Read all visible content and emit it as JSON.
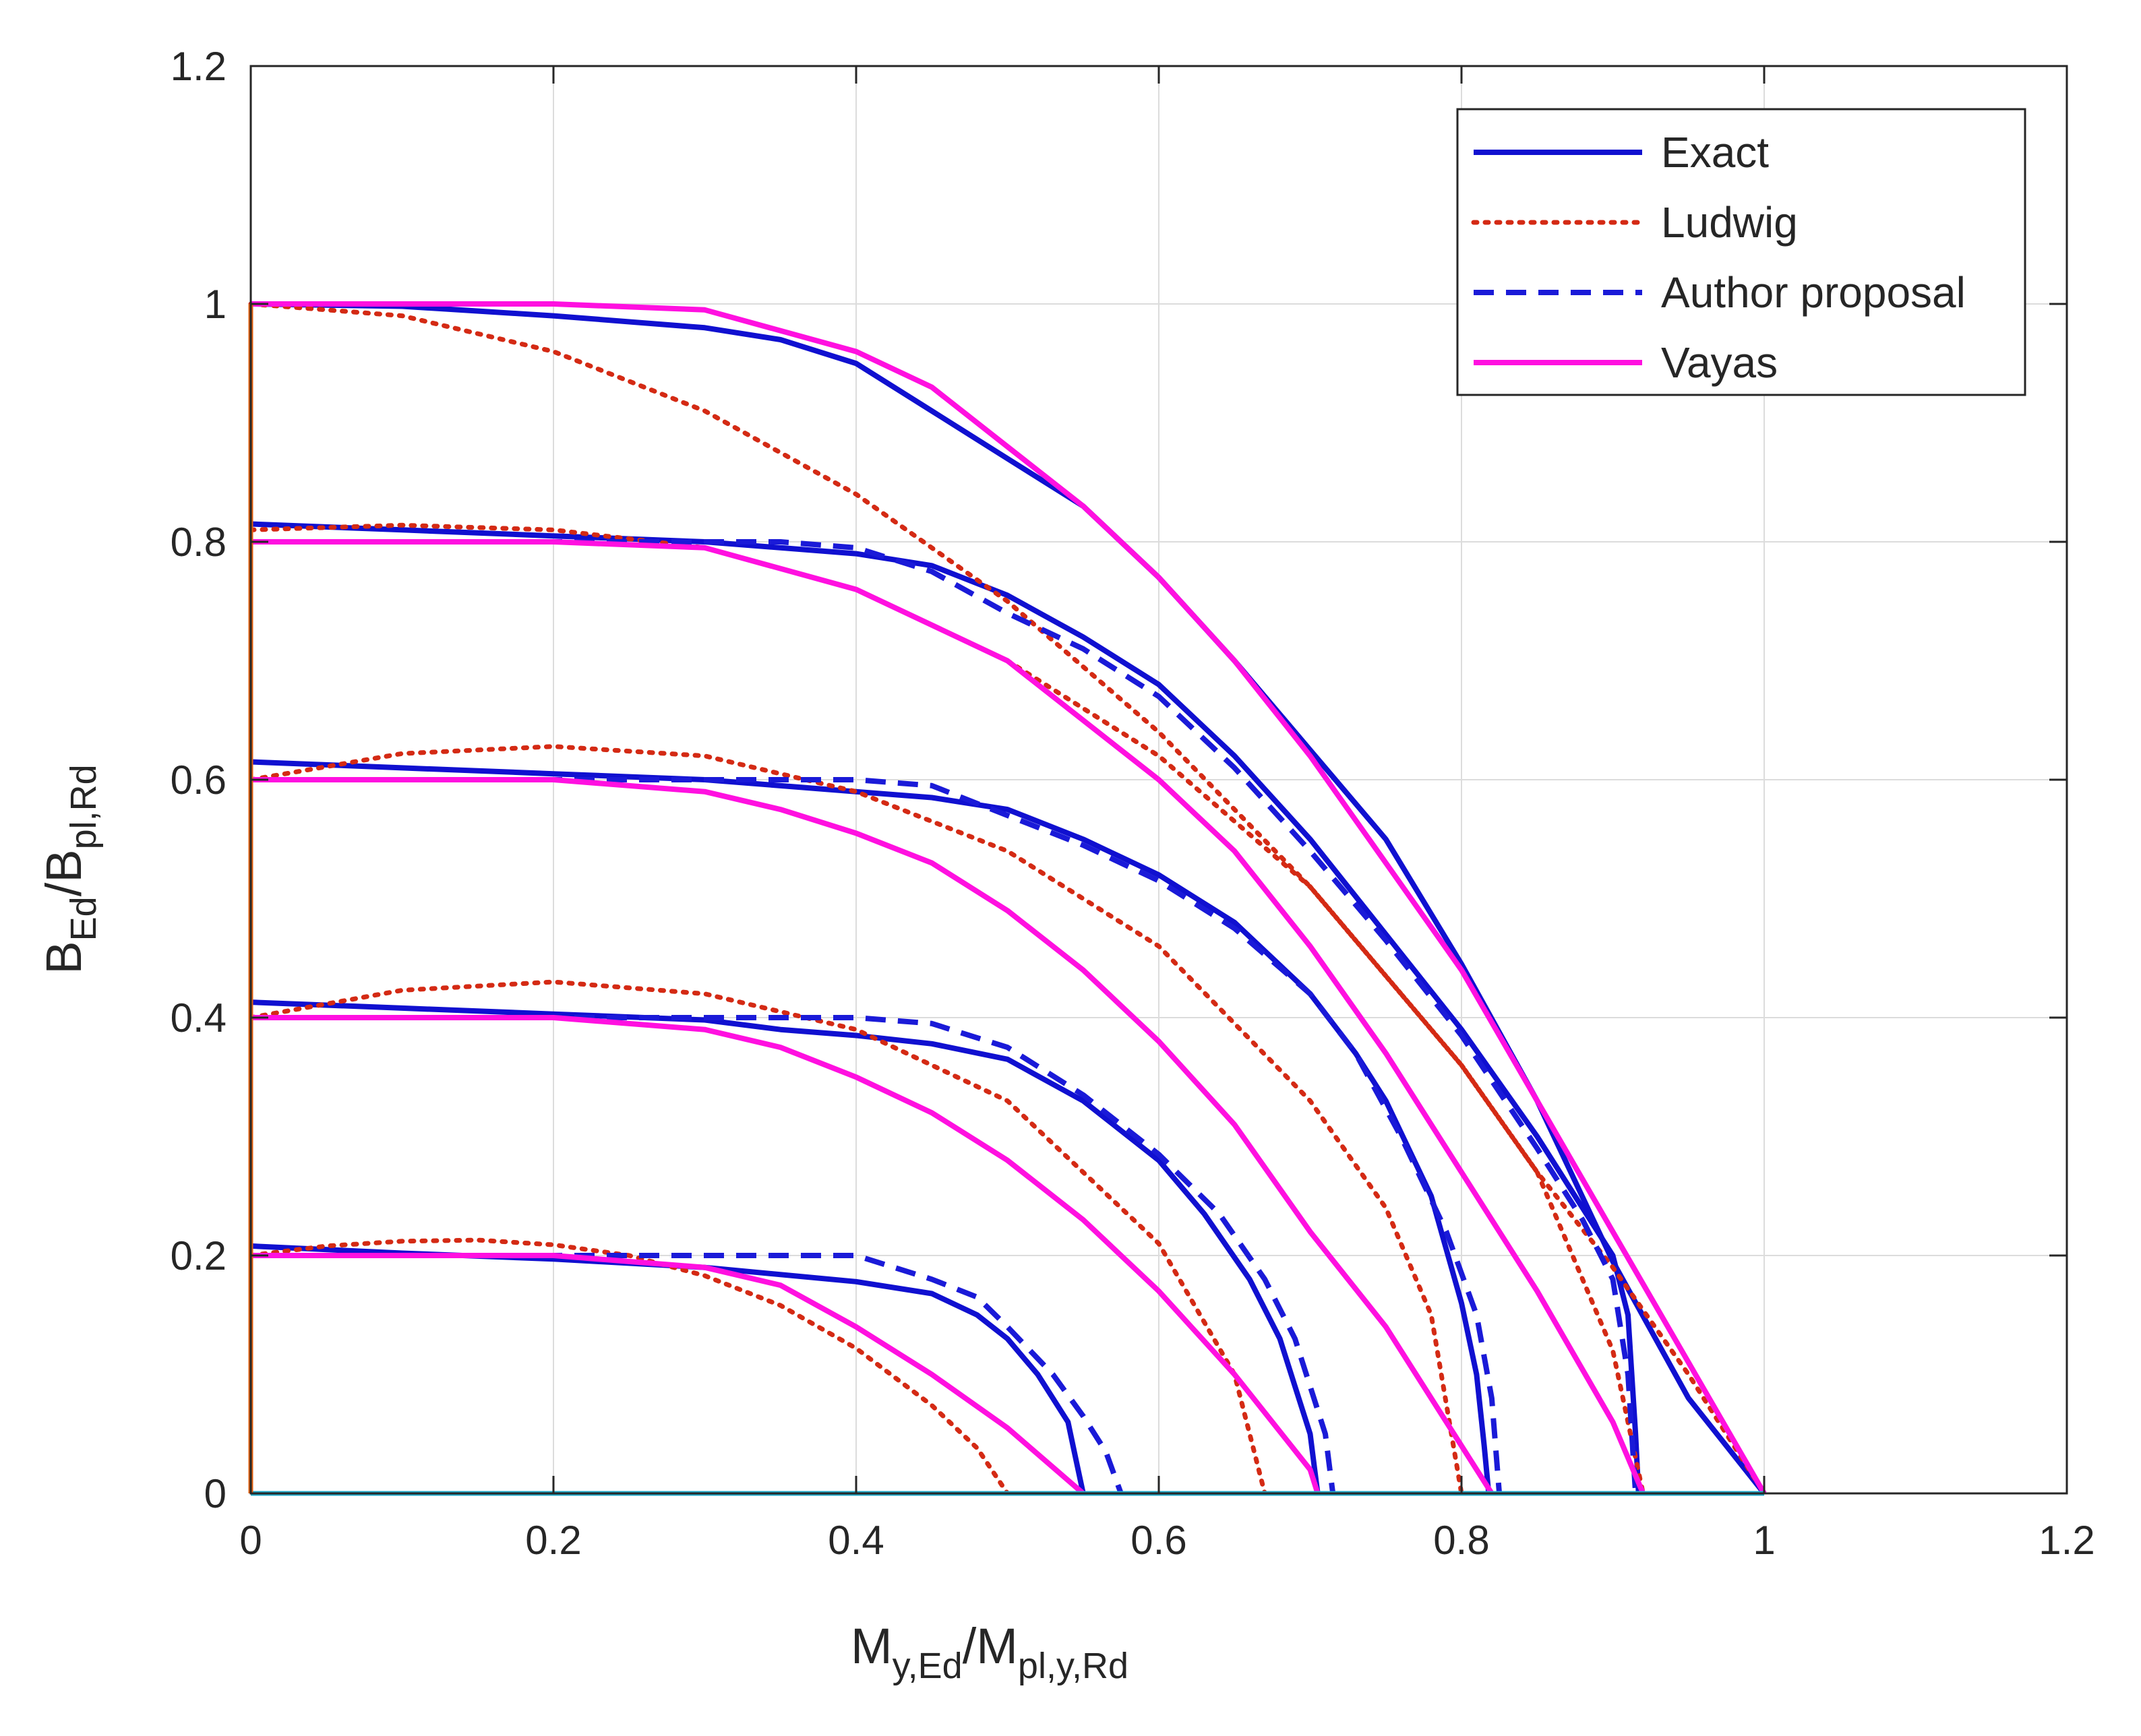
{
  "chart_data": {
    "type": "line",
    "title": "",
    "xlabel": {
      "main": "M",
      "sub1": "y,Ed",
      "sep": "/M",
      "sub2": "pl,y,Rd"
    },
    "ylabel": {
      "main": "B",
      "sub1": "Ed",
      "sep": "/B",
      "sub2": "pl,Rd"
    },
    "xlim": [
      0,
      1.2
    ],
    "ylim": [
      0,
      1.2
    ],
    "x_ticks": [
      "0",
      "0.2",
      "0.4",
      "0.6",
      "0.8",
      "1",
      "1.2"
    ],
    "y_ticks": [
      "0",
      "0.2",
      "0.4",
      "0.6",
      "0.8",
      "1",
      "1.2"
    ],
    "grid": true,
    "legend_position": "top-right",
    "legend": [
      {
        "key": "exact",
        "label": "Exact"
      },
      {
        "key": "ludwig",
        "label": "Ludwig"
      },
      {
        "key": "author",
        "label": "Author proposal"
      },
      {
        "key": "vayas",
        "label": "Vayas"
      }
    ],
    "styles": {
      "exact": {
        "color": "#1010d0",
        "dash": ""
      },
      "ludwig": {
        "color": "#d42a14",
        "dash": "dot"
      },
      "author": {
        "color": "#1a1ad8",
        "dash": "dash"
      },
      "vayas": {
        "color": "#ff10e0",
        "dash": ""
      }
    },
    "axis_line_colors": {
      "y_axis": "#e06010",
      "x_axis": "#20a8c8"
    },
    "series": [
      {
        "name": "Exact",
        "style": "exact",
        "x": [
          0,
          0.1,
          0.2,
          0.3,
          0.35,
          0.4,
          0.45,
          0.5,
          0.55,
          0.6,
          0.65,
          0.7,
          0.75,
          0.8,
          0.85,
          0.9,
          0.95,
          1.0
        ],
        "y": [
          1.0,
          0.998,
          0.99,
          0.98,
          0.97,
          0.95,
          0.91,
          0.87,
          0.83,
          0.77,
          0.7,
          0.625,
          0.55,
          0.445,
          0.33,
          0.195,
          0.08,
          0.0
        ]
      },
      {
        "name": "Exact",
        "style": "exact",
        "x": [
          0,
          0.1,
          0.2,
          0.3,
          0.4,
          0.45,
          0.5,
          0.55,
          0.6,
          0.65,
          0.7,
          0.75,
          0.8,
          0.85,
          0.88,
          0.9,
          0.91,
          0.915,
          0.917
        ],
        "y": [
          0.815,
          0.81,
          0.805,
          0.8,
          0.79,
          0.78,
          0.755,
          0.72,
          0.68,
          0.62,
          0.55,
          0.47,
          0.39,
          0.3,
          0.24,
          0.2,
          0.15,
          0.05,
          0.0
        ]
      },
      {
        "name": "Exact",
        "style": "exact",
        "x": [
          0,
          0.1,
          0.2,
          0.3,
          0.4,
          0.45,
          0.5,
          0.55,
          0.6,
          0.65,
          0.7,
          0.73,
          0.75,
          0.78,
          0.8,
          0.81,
          0.815,
          0.818
        ],
        "y": [
          0.615,
          0.61,
          0.605,
          0.6,
          0.59,
          0.585,
          0.575,
          0.55,
          0.52,
          0.48,
          0.42,
          0.37,
          0.33,
          0.25,
          0.16,
          0.1,
          0.04,
          0.0
        ]
      },
      {
        "name": "Exact",
        "style": "exact",
        "x": [
          0,
          0.1,
          0.2,
          0.3,
          0.35,
          0.4,
          0.45,
          0.5,
          0.55,
          0.6,
          0.63,
          0.66,
          0.68,
          0.69,
          0.7,
          0.703,
          0.705
        ],
        "y": [
          0.413,
          0.408,
          0.403,
          0.398,
          0.39,
          0.385,
          0.378,
          0.365,
          0.33,
          0.28,
          0.235,
          0.18,
          0.13,
          0.09,
          0.05,
          0.02,
          0.0
        ]
      },
      {
        "name": "Exact",
        "style": "exact",
        "x": [
          0,
          0.1,
          0.2,
          0.3,
          0.4,
          0.45,
          0.48,
          0.5,
          0.52,
          0.54,
          0.545,
          0.55
        ],
        "y": [
          0.208,
          0.202,
          0.197,
          0.19,
          0.178,
          0.168,
          0.15,
          0.13,
          0.1,
          0.06,
          0.03,
          0.0
        ]
      },
      {
        "name": "Ludwig",
        "style": "ludwig",
        "x": [
          0,
          0.1,
          0.2,
          0.3,
          0.4,
          0.5,
          0.6,
          0.7,
          0.8,
          0.85,
          0.9,
          0.95,
          1.0
        ],
        "y": [
          1.0,
          0.99,
          0.96,
          0.91,
          0.84,
          0.75,
          0.64,
          0.51,
          0.36,
          0.27,
          0.19,
          0.1,
          0.0
        ]
      },
      {
        "name": "Ludwig",
        "style": "ludwig",
        "x": [
          0,
          0.1,
          0.2,
          0.3,
          0.4,
          0.5,
          0.6,
          0.7,
          0.8,
          0.85,
          0.9,
          0.92
        ],
        "y": [
          0.81,
          0.814,
          0.81,
          0.795,
          0.76,
          0.7,
          0.62,
          0.51,
          0.36,
          0.27,
          0.12,
          0.0
        ]
      },
      {
        "name": "Ludwig",
        "style": "ludwig",
        "x": [
          0,
          0.1,
          0.2,
          0.3,
          0.4,
          0.5,
          0.6,
          0.7,
          0.75,
          0.78,
          0.8
        ],
        "y": [
          0.6,
          0.622,
          0.628,
          0.62,
          0.59,
          0.54,
          0.46,
          0.33,
          0.24,
          0.15,
          0.0
        ]
      },
      {
        "name": "Ludwig",
        "style": "ludwig",
        "x": [
          0,
          0.1,
          0.2,
          0.3,
          0.4,
          0.5,
          0.6,
          0.65,
          0.67
        ],
        "y": [
          0.4,
          0.423,
          0.43,
          0.42,
          0.39,
          0.33,
          0.21,
          0.1,
          0.0
        ]
      },
      {
        "name": "Ludwig",
        "style": "ludwig",
        "x": [
          0,
          0.05,
          0.1,
          0.15,
          0.2,
          0.25,
          0.3,
          0.35,
          0.4,
          0.45,
          0.48,
          0.5
        ],
        "y": [
          0.2,
          0.208,
          0.212,
          0.213,
          0.209,
          0.2,
          0.183,
          0.158,
          0.122,
          0.074,
          0.038,
          0.0
        ]
      },
      {
        "name": "Author proposal",
        "style": "author",
        "x": [
          0,
          0.1,
          0.2,
          0.3,
          0.35,
          0.4,
          0.45,
          0.5,
          0.55,
          0.6,
          0.65,
          0.7,
          0.75,
          0.8,
          0.85,
          0.88,
          0.9,
          0.91,
          0.915
        ],
        "y": [
          0.8,
          0.8,
          0.8,
          0.8,
          0.8,
          0.795,
          0.775,
          0.74,
          0.71,
          0.67,
          0.61,
          0.54,
          0.465,
          0.385,
          0.29,
          0.23,
          0.18,
          0.1,
          0.0
        ]
      },
      {
        "name": "Author proposal",
        "style": "author",
        "x": [
          0,
          0.1,
          0.2,
          0.3,
          0.35,
          0.4,
          0.45,
          0.5,
          0.55,
          0.6,
          0.65,
          0.7,
          0.73,
          0.76,
          0.79,
          0.81,
          0.82,
          0.825
        ],
        "y": [
          0.6,
          0.6,
          0.6,
          0.6,
          0.6,
          0.6,
          0.595,
          0.57,
          0.545,
          0.515,
          0.475,
          0.42,
          0.37,
          0.3,
          0.22,
          0.15,
          0.08,
          0.0
        ]
      },
      {
        "name": "Author proposal",
        "style": "author",
        "x": [
          0,
          0.1,
          0.2,
          0.3,
          0.35,
          0.4,
          0.45,
          0.5,
          0.55,
          0.6,
          0.64,
          0.67,
          0.69,
          0.7,
          0.71,
          0.715
        ],
        "y": [
          0.4,
          0.4,
          0.4,
          0.4,
          0.4,
          0.4,
          0.395,
          0.375,
          0.335,
          0.285,
          0.235,
          0.18,
          0.13,
          0.09,
          0.05,
          0.0
        ]
      },
      {
        "name": "Author proposal",
        "style": "author",
        "x": [
          0,
          0.1,
          0.2,
          0.3,
          0.35,
          0.4,
          0.45,
          0.48,
          0.5,
          0.53,
          0.55,
          0.565,
          0.575
        ],
        "y": [
          0.2,
          0.2,
          0.2,
          0.2,
          0.2,
          0.2,
          0.18,
          0.165,
          0.14,
          0.1,
          0.065,
          0.035,
          0.0
        ]
      },
      {
        "name": "Vayas",
        "style": "vayas",
        "x": [
          0,
          0.1,
          0.2,
          0.3,
          0.4,
          0.45,
          0.5,
          0.55,
          0.6,
          0.65,
          0.7,
          0.75,
          0.8,
          0.85,
          0.9,
          0.95,
          1.0
        ],
        "y": [
          1.0,
          1.0,
          1.0,
          0.995,
          0.96,
          0.93,
          0.88,
          0.83,
          0.77,
          0.7,
          0.62,
          0.53,
          0.44,
          0.33,
          0.22,
          0.11,
          0.0
        ]
      },
      {
        "name": "Vayas",
        "style": "vayas",
        "x": [
          0,
          0.1,
          0.2,
          0.3,
          0.4,
          0.5,
          0.6,
          0.65,
          0.7,
          0.75,
          0.8,
          0.85,
          0.9,
          0.92
        ],
        "y": [
          0.8,
          0.8,
          0.8,
          0.795,
          0.76,
          0.7,
          0.6,
          0.54,
          0.46,
          0.37,
          0.27,
          0.17,
          0.06,
          0.0
        ]
      },
      {
        "name": "Vayas",
        "style": "vayas",
        "x": [
          0,
          0.1,
          0.2,
          0.3,
          0.35,
          0.4,
          0.45,
          0.5,
          0.55,
          0.6,
          0.65,
          0.7,
          0.75,
          0.8,
          0.82
        ],
        "y": [
          0.6,
          0.6,
          0.6,
          0.59,
          0.575,
          0.555,
          0.53,
          0.49,
          0.44,
          0.38,
          0.31,
          0.22,
          0.14,
          0.04,
          0.0
        ]
      },
      {
        "name": "Vayas",
        "style": "vayas",
        "x": [
          0,
          0.1,
          0.2,
          0.3,
          0.35,
          0.4,
          0.45,
          0.5,
          0.55,
          0.6,
          0.65,
          0.7,
          0.705
        ],
        "y": [
          0.4,
          0.4,
          0.4,
          0.39,
          0.375,
          0.35,
          0.32,
          0.28,
          0.23,
          0.17,
          0.1,
          0.02,
          0.0
        ]
      },
      {
        "name": "Vayas",
        "style": "vayas",
        "x": [
          0,
          0.1,
          0.2,
          0.3,
          0.35,
          0.4,
          0.45,
          0.5,
          0.55
        ],
        "y": [
          0.2,
          0.2,
          0.2,
          0.19,
          0.175,
          0.14,
          0.1,
          0.055,
          0.0
        ]
      }
    ]
  }
}
